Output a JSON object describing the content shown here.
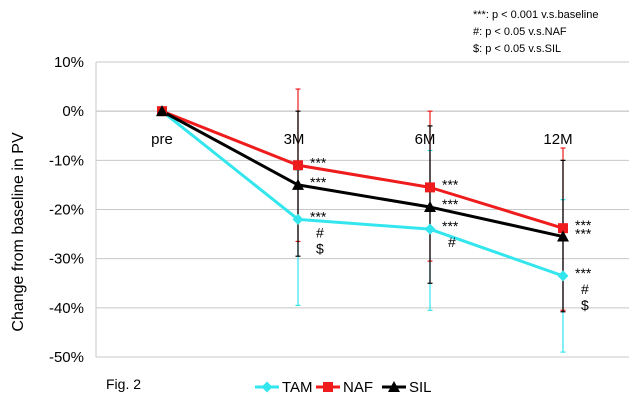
{
  "chart_data": {
    "type": "line",
    "categories": [
      "pre",
      "3M",
      "6M",
      "12M"
    ],
    "ylabel": "Change from baseline in PV",
    "ylim": [
      -50,
      10
    ],
    "yticks": [
      10,
      0,
      -10,
      -20,
      -30,
      -40,
      -50
    ],
    "ytick_labels": [
      "10%",
      "0%",
      "-10%",
      "-20%",
      "-30%",
      "-40%",
      "-50%"
    ],
    "grid": true,
    "legend_position": "bottom",
    "series": [
      {
        "name": "TAM",
        "color": "#33e6ee",
        "marker": "diamond",
        "values": [
          0,
          -22,
          -24,
          -33.5
        ],
        "error_low": [
          null,
          -39.5,
          -40.5,
          -49
        ],
        "error_high": [
          null,
          -12,
          -8,
          -18
        ]
      },
      {
        "name": "NAF",
        "color": "#ee1c1c",
        "marker": "square",
        "values": [
          0,
          -11,
          -15.5,
          -23.8
        ],
        "error_low": [
          null,
          -26.5,
          -30.5,
          -40.5
        ],
        "error_high": [
          null,
          4.5,
          0,
          -7.5
        ]
      },
      {
        "name": "SIL",
        "color": "#000000",
        "marker": "triangle",
        "values": [
          0,
          -15,
          -19.5,
          -25.5
        ],
        "error_low": [
          null,
          -29.5,
          -35,
          -40.8
        ],
        "error_high": [
          null,
          0,
          -3,
          -10
        ]
      }
    ],
    "point_annotations": [
      {
        "category": "3M",
        "series": "NAF",
        "lines": [
          "***"
        ]
      },
      {
        "category": "3M",
        "series": "SIL",
        "lines": [
          "***"
        ]
      },
      {
        "category": "3M",
        "series": "TAM",
        "lines": [
          "***",
          "#",
          "$"
        ]
      },
      {
        "category": "6M",
        "series": "NAF",
        "lines": [
          "***"
        ]
      },
      {
        "category": "6M",
        "series": "SIL",
        "lines": [
          "***"
        ]
      },
      {
        "category": "6M",
        "series": "TAM",
        "lines": [
          "***",
          "#"
        ]
      },
      {
        "category": "12M",
        "series": "NAF",
        "lines": [
          "***"
        ]
      },
      {
        "category": "12M",
        "series": "SIL",
        "lines": [
          "***"
        ]
      },
      {
        "category": "12M",
        "series": "TAM",
        "lines": [
          "***",
          "#",
          "$"
        ]
      }
    ],
    "notes": [
      "***: p < 0.001 v.s.baseline",
      "#: p < 0.05 v.s.NAF",
      "$: p < 0.05 v.s.SIL"
    ],
    "figure_label": "Fig. 2"
  }
}
